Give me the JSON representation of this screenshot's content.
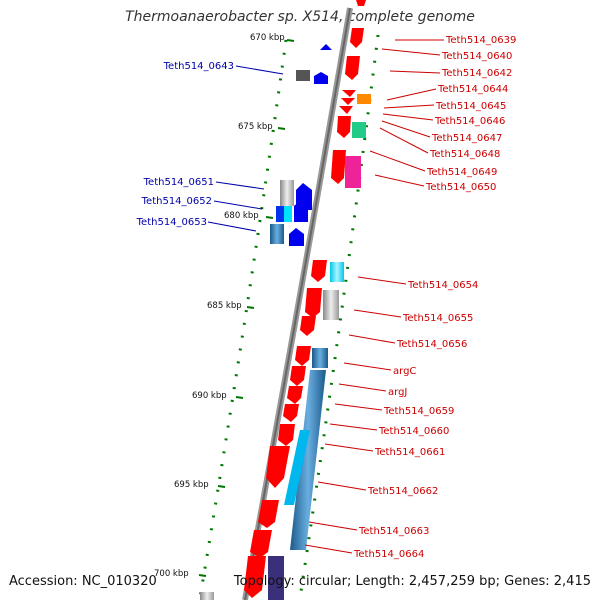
{
  "title": "Thermoanaerobacter sp. X514, complete genome",
  "accession_text": "Accession: NC_010320",
  "summary_text": "Topology: circular; Length: 2,457,259 bp; Genes: 2,415",
  "colors": {
    "forward_label": "#cc0000",
    "reverse_label": "#0000aa",
    "backbone": "#888888",
    "tick": "#007700",
    "gene_forward": "#ff0000",
    "gene_reverse": "#0000ee"
  },
  "scale_labels": [
    "670 kbp",
    "675 kbp",
    "680 kbp",
    "685 kbp",
    "690 kbp",
    "695 kbp",
    "700 kbp"
  ],
  "right_labels": [
    "Teth514_0639",
    "Teth514_0640",
    "Teth514_0642",
    "Teth514_0644",
    "Teth514_0645",
    "Teth514_0646",
    "Teth514_0647",
    "Teth514_0648",
    "Teth514_0649",
    "Teth514_0650",
    "Teth514_0654",
    "Teth514_0655",
    "Teth514_0656",
    "argC",
    "argJ",
    "Teth514_0659",
    "Teth514_0660",
    "Teth514_0661",
    "Teth514_0662",
    "Teth514_0663",
    "Teth514_0664"
  ],
  "left_labels": [
    "Teth514_0643",
    "Teth514_0651",
    "Teth514_0652",
    "Teth514_0653"
  ]
}
